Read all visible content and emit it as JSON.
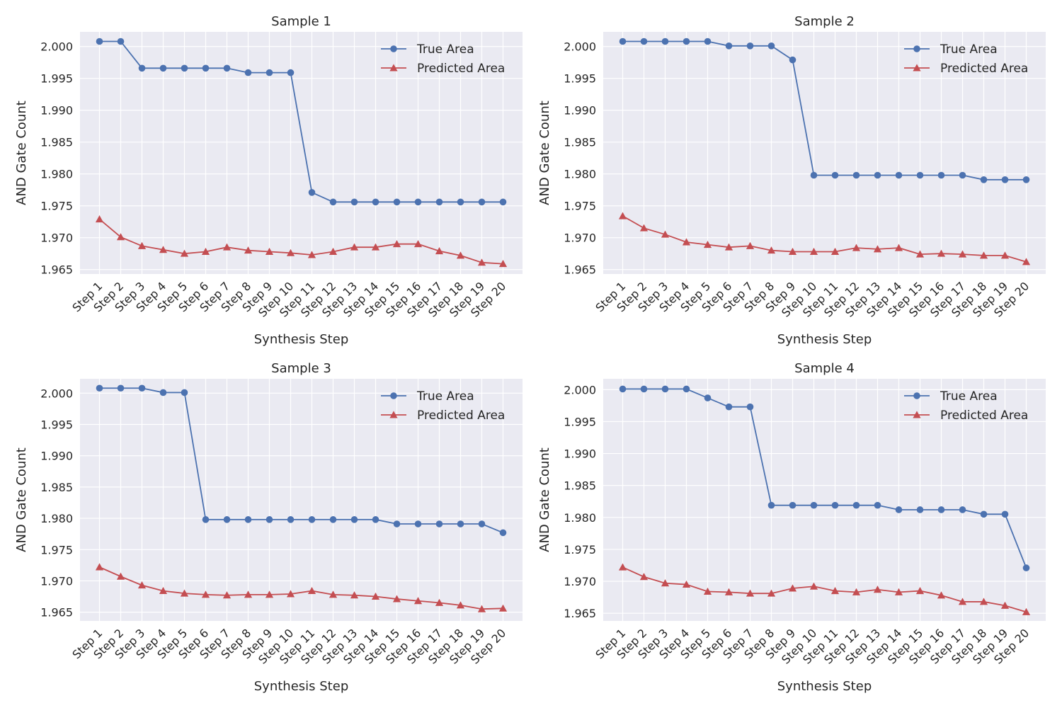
{
  "chart_data": [
    {
      "type": "line",
      "title": "Sample 1",
      "xlabel": "Synthesis Step",
      "ylabel": "AND Gate Count",
      "categories": [
        "Step 1",
        "Step 2",
        "Step 3",
        "Step 4",
        "Step 5",
        "Step 6",
        "Step 7",
        "Step 8",
        "Step 9",
        "Step 10",
        "Step 11",
        "Step 12",
        "Step 13",
        "Step 14",
        "Step 15",
        "Step 16",
        "Step 17",
        "Step 18",
        "Step 19",
        "Step 20"
      ],
      "yticks": [
        "1.965",
        "1.970",
        "1.975",
        "1.980",
        "1.985",
        "1.990",
        "1.995",
        "2.000"
      ],
      "ylim": [
        1.9643,
        2.0023
      ],
      "grid": true,
      "legend_position": "upper right",
      "series": [
        {
          "name": "True Area",
          "color": "#4c72b0",
          "marker": "circle",
          "values": [
            2.0008,
            2.0008,
            1.9966,
            1.9966,
            1.9966,
            1.9966,
            1.9966,
            1.9959,
            1.9959,
            1.9959,
            1.9771,
            1.9756,
            1.9756,
            1.9756,
            1.9756,
            1.9756,
            1.9756,
            1.9756,
            1.9756,
            1.9756
          ]
        },
        {
          "name": "Predicted Area",
          "color": "#c44e52",
          "marker": "triangle",
          "values": [
            1.9729,
            1.9701,
            1.9687,
            1.9681,
            1.9675,
            1.9678,
            1.9685,
            1.968,
            1.9678,
            1.9676,
            1.9673,
            1.9678,
            1.9685,
            1.9685,
            1.969,
            1.969,
            1.9679,
            1.9672,
            1.9661,
            1.9659
          ]
        }
      ]
    },
    {
      "type": "line",
      "title": "Sample 2",
      "xlabel": "Synthesis Step",
      "ylabel": "AND Gate Count",
      "categories": [
        "Step 1",
        "Step 2",
        "Step 3",
        "Step 4",
        "Step 5",
        "Step 6",
        "Step 7",
        "Step 8",
        "Step 9",
        "Step 10",
        "Step 11",
        "Step 12",
        "Step 13",
        "Step 14",
        "Step 15",
        "Step 16",
        "Step 17",
        "Step 18",
        "Step 19",
        "Step 20"
      ],
      "yticks": [
        "1.965",
        "1.970",
        "1.975",
        "1.980",
        "1.985",
        "1.990",
        "1.995",
        "2.000"
      ],
      "ylim": [
        1.9643,
        2.0023
      ],
      "grid": true,
      "legend_position": "upper right",
      "series": [
        {
          "name": "True Area",
          "color": "#4c72b0",
          "marker": "circle",
          "values": [
            2.0008,
            2.0008,
            2.0008,
            2.0008,
            2.0008,
            2.0001,
            2.0001,
            2.0001,
            1.9979,
            1.9798,
            1.9798,
            1.9798,
            1.9798,
            1.9798,
            1.9798,
            1.9798,
            1.9798,
            1.9791,
            1.9791,
            1.9791
          ]
        },
        {
          "name": "Predicted Area",
          "color": "#c44e52",
          "marker": "triangle",
          "values": [
            1.9734,
            1.9715,
            1.9705,
            1.9693,
            1.9689,
            1.9685,
            1.9687,
            1.968,
            1.9678,
            1.9678,
            1.9678,
            1.9684,
            1.9682,
            1.9684,
            1.9674,
            1.9675,
            1.9674,
            1.9672,
            1.9672,
            1.9662
          ]
        }
      ]
    },
    {
      "type": "line",
      "title": "Sample 3",
      "xlabel": "Synthesis Step",
      "ylabel": "AND Gate Count",
      "categories": [
        "Step 1",
        "Step 2",
        "Step 3",
        "Step 4",
        "Step 5",
        "Step 6",
        "Step 7",
        "Step 8",
        "Step 9",
        "Step 10",
        "Step 11",
        "Step 12",
        "Step 13",
        "Step 14",
        "Step 15",
        "Step 16",
        "Step 17",
        "Step 18",
        "Step 19",
        "Step 20"
      ],
      "yticks": [
        "1.965",
        "1.970",
        "1.975",
        "1.980",
        "1.985",
        "1.990",
        "1.995",
        "2.000"
      ],
      "ylim": [
        1.9636,
        2.0023
      ],
      "grid": true,
      "legend_position": "upper right",
      "series": [
        {
          "name": "True Area",
          "color": "#4c72b0",
          "marker": "circle",
          "values": [
            2.0008,
            2.0008,
            2.0008,
            2.0001,
            2.0001,
            1.9798,
            1.9798,
            1.9798,
            1.9798,
            1.9798,
            1.9798,
            1.9798,
            1.9798,
            1.9798,
            1.9791,
            1.9791,
            1.9791,
            1.9791,
            1.9791,
            1.9777
          ]
        },
        {
          "name": "Predicted Area",
          "color": "#c44e52",
          "marker": "triangle",
          "values": [
            1.9722,
            1.9707,
            1.9693,
            1.9684,
            1.968,
            1.9678,
            1.9677,
            1.9678,
            1.9678,
            1.9679,
            1.9684,
            1.9678,
            1.9677,
            1.9675,
            1.9671,
            1.9668,
            1.9665,
            1.9661,
            1.9655,
            1.9656
          ]
        }
      ]
    },
    {
      "type": "line",
      "title": "Sample 4",
      "xlabel": "Synthesis Step",
      "ylabel": "AND Gate Count",
      "categories": [
        "Step 1",
        "Step 2",
        "Step 3",
        "Step 4",
        "Step 5",
        "Step 6",
        "Step 7",
        "Step 8",
        "Step 9",
        "Step 10",
        "Step 11",
        "Step 12",
        "Step 13",
        "Step 14",
        "Step 15",
        "Step 16",
        "Step 17",
        "Step 18",
        "Step 19",
        "Step 20"
      ],
      "yticks": [
        "1.965",
        "1.970",
        "1.975",
        "1.980",
        "1.985",
        "1.990",
        "1.995",
        "2.000"
      ],
      "ylim": [
        1.9638,
        2.0017
      ],
      "grid": true,
      "legend_position": "upper right",
      "series": [
        {
          "name": "True Area",
          "color": "#4c72b0",
          "marker": "circle",
          "values": [
            2.0001,
            2.0001,
            2.0001,
            2.0001,
            1.9987,
            1.9973,
            1.9973,
            1.9819,
            1.9819,
            1.9819,
            1.9819,
            1.9819,
            1.9819,
            1.9812,
            1.9812,
            1.9812,
            1.9812,
            1.9805,
            1.9805,
            1.9721
          ]
        },
        {
          "name": "Predicted Area",
          "color": "#c44e52",
          "marker": "triangle",
          "values": [
            1.9722,
            1.9707,
            1.9697,
            1.9695,
            1.9684,
            1.9683,
            1.9681,
            1.9681,
            1.9689,
            1.9692,
            1.9685,
            1.9683,
            1.9687,
            1.9683,
            1.9685,
            1.9678,
            1.9668,
            1.9668,
            1.9662,
            1.9652
          ]
        }
      ]
    }
  ]
}
